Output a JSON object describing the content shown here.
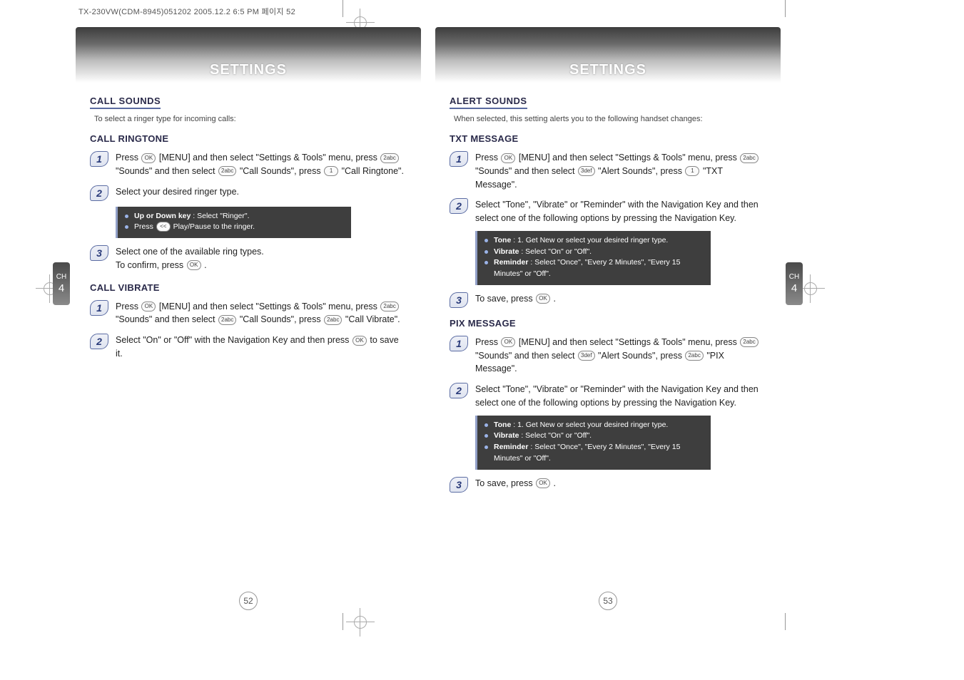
{
  "meta": {
    "headerLine": "TX-230VW(CDM-8945)051202  2005.12.2 6:5 PM 페이지 52"
  },
  "colors": {
    "accent": "#5a6aa0",
    "darkbox_bg": "#3e3e3e",
    "darkbox_border": "#92a0c8",
    "bullet": "#9bb3e8"
  },
  "tabs": {
    "chapterLabel": "CH",
    "chapterNum": "4"
  },
  "left": {
    "title": "SETTINGS",
    "pageNum": "52",
    "sections": [
      {
        "heading": "CALL SOUNDS",
        "sub": "To select a ringer type for incoming calls:",
        "groups": [
          {
            "subheading": "CALL RINGTONE",
            "steps": [
              {
                "n": "1",
                "text": "Press {OK} [MENU] and then select \"Settings & Tools\" menu, press {2abc} \"Sounds\" and then select {2abc} \"Call Sounds\", press {1} \"Call Ringtone\"."
              },
              {
                "n": "2",
                "text": "Select your desired ringer type.",
                "notes": [
                  {
                    "bold": "Up or Down key",
                    "rest": " : Select \"Ringer\"."
                  },
                  {
                    "bold": "",
                    "rest": "Press {<<} Play/Pause to the ringer."
                  }
                ]
              },
              {
                "n": "3",
                "text": "Select one of the available ring types.\nTo confirm, press {OK} ."
              }
            ]
          },
          {
            "subheading": "CALL VIBRATE",
            "steps": [
              {
                "n": "1",
                "text": "Press {OK} [MENU] and then select \"Settings & Tools\" menu, press {2abc} \"Sounds\" and then select {2abc} \"Call Sounds\", press {2abc} \"Call Vibrate\"."
              },
              {
                "n": "2",
                "text": "Select \"On\" or \"Off\" with the Navigation Key and then press {OK} to save it."
              }
            ]
          }
        ]
      }
    ]
  },
  "right": {
    "title": "SETTINGS",
    "pageNum": "53",
    "sections": [
      {
        "heading": "ALERT SOUNDS",
        "sub": "When selected, this setting alerts you to the following handset changes:",
        "groups": [
          {
            "subheading": "TXT MESSAGE",
            "steps": [
              {
                "n": "1",
                "text": "Press {OK} [MENU] and then select \"Settings & Tools\" menu, press {2abc} \"Sounds\" and then select {3def} \"Alert Sounds\", press {1} \"TXT Message\"."
              },
              {
                "n": "2",
                "text": "Select \"Tone\", \"Vibrate\" or \"Reminder\" with the Navigation Key and then select one of the following options by pressing the Navigation Key.",
                "notes": [
                  {
                    "bold": "Tone",
                    "rest": " : 1. Get New or select your desired ringer type."
                  },
                  {
                    "bold": "Vibrate",
                    "rest": " : Select \"On\" or \"Off\"."
                  },
                  {
                    "bold": "Reminder",
                    "rest": " : Select \"Once\", \"Every 2 Minutes\", \"Every 15 Minutes\" or \"Off\"."
                  }
                ]
              },
              {
                "n": "3",
                "text": "To save, press {OK} ."
              }
            ]
          },
          {
            "subheading": "PIX MESSAGE",
            "steps": [
              {
                "n": "1",
                "text": "Press {OK} [MENU] and then select \"Settings & Tools\" menu, press {2abc} \"Sounds\" and then select {3def} \"Alert Sounds\", press {2abc} \"PIX Message\"."
              },
              {
                "n": "2",
                "text": "Select \"Tone\", \"Vibrate\" or \"Reminder\" with the Navigation Key and then select one of the following options by pressing the Navigation Key.",
                "notes": [
                  {
                    "bold": "Tone",
                    "rest": " : 1. Get New or select your desired ringer type."
                  },
                  {
                    "bold": "Vibrate",
                    "rest": " : Select \"On\" or \"Off\"."
                  },
                  {
                    "bold": "Reminder",
                    "rest": " : Select \"Once\", \"Every 2 Minutes\", \"Every 15 Minutes\" or \"Off\"."
                  }
                ]
              },
              {
                "n": "3",
                "text": "To save, press {OK} ."
              }
            ]
          }
        ]
      }
    ]
  }
}
